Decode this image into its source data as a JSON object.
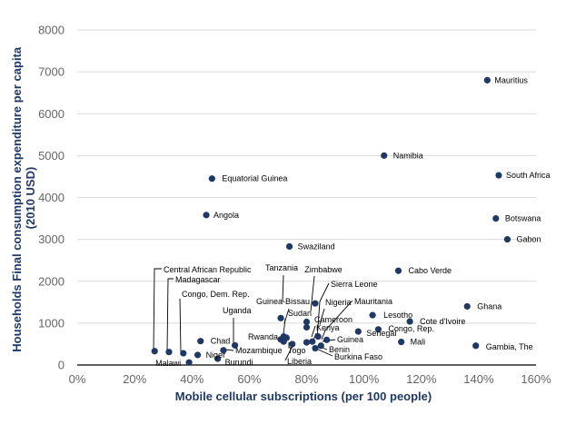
{
  "chart_data": {
    "type": "scatter",
    "title": "",
    "xlabel": "Mobile cellular subscriptions (per 100 people)",
    "ylabel": "Households Final consumption expenditure per capita (2010 USD)",
    "xlim": [
      0,
      160
    ],
    "ylim": [
      0,
      8000
    ],
    "x_ticks": [
      "0%",
      "20%",
      "40%",
      "60%",
      "80%",
      "100%",
      "120%",
      "140%",
      "160%"
    ],
    "y_ticks": [
      "0",
      "1000",
      "2000",
      "3000",
      "4000",
      "5000",
      "6000",
      "7000",
      "8000"
    ],
    "grid": "horizontal",
    "legend": "none",
    "marker_color": "#1f3864",
    "points": [
      {
        "label": "Mauritius",
        "x": 143,
        "y": 6800
      },
      {
        "label": "Namibia",
        "x": 107,
        "y": 5000
      },
      {
        "label": "South Africa",
        "x": 147,
        "y": 4530
      },
      {
        "label": "Equatorial Guinea",
        "x": 47,
        "y": 4450
      },
      {
        "label": "Angola",
        "x": 45,
        "y": 3580
      },
      {
        "label": "Botswana",
        "x": 146,
        "y": 3500
      },
      {
        "label": "Gabon",
        "x": 150,
        "y": 3000
      },
      {
        "label": "Swaziland",
        "x": 74,
        "y": 2830
      },
      {
        "label": "Cabo Verde",
        "x": 112,
        "y": 2250
      },
      {
        "label": "Ghana",
        "x": 136,
        "y": 1400
      },
      {
        "label": "Lesotho",
        "x": 103,
        "y": 1190
      },
      {
        "label": "Cote d'Ivoire",
        "x": 116,
        "y": 1040
      },
      {
        "label": "Congo, Rep.",
        "x": 105,
        "y": 850
      },
      {
        "label": "Senegal",
        "x": 98,
        "y": 800
      },
      {
        "label": "Mali",
        "x": 113,
        "y": 550
      },
      {
        "label": "Gambia, The",
        "x": 139,
        "y": 460
      },
      {
        "label": "Tanzania",
        "x": 71,
        "y": 1120
      },
      {
        "label": "Zimbabwe",
        "x": 80,
        "y": 1030
      },
      {
        "label": "Sierra Leone",
        "x": 87,
        "y": 600
      },
      {
        "label": "Guinea-Bissau",
        "x": 72,
        "y": 680
      },
      {
        "label": "Sudan",
        "x": 73,
        "y": 650
      },
      {
        "label": "Nigeria",
        "x": 83,
        "y": 1470
      },
      {
        "label": "Mauritania",
        "x": 84,
        "y": 680
      },
      {
        "label": "Cameroon",
        "x": 80,
        "y": 900
      },
      {
        "label": "Kenya",
        "x": 82,
        "y": 560
      },
      {
        "label": "Rwanda",
        "x": 71,
        "y": 610
      },
      {
        "label": "Togo",
        "x": 75,
        "y": 500
      },
      {
        "label": "Benin",
        "x": 85,
        "y": 460
      },
      {
        "label": "Burkina Faso",
        "x": 83,
        "y": 400
      },
      {
        "label": "Guinea",
        "x": 80,
        "y": 540
      },
      {
        "label": "Liberia",
        "x": 72,
        "y": 560
      },
      {
        "label": "Central African Republic",
        "x": 27,
        "y": 330
      },
      {
        "label": "Madagascar",
        "x": 32,
        "y": 310
      },
      {
        "label": "Congo, Dem. Rep.",
        "x": 37,
        "y": 280
      },
      {
        "label": "Chad",
        "x": 43,
        "y": 570
      },
      {
        "label": "Niger",
        "x": 42,
        "y": 240
      },
      {
        "label": "Malawi",
        "x": 39,
        "y": 60
      },
      {
        "label": "Mozambique",
        "x": 51,
        "y": 350
      },
      {
        "label": "Uganda",
        "x": 55,
        "y": 470
      },
      {
        "label": "Burundi",
        "x": 49,
        "y": 150
      }
    ]
  }
}
